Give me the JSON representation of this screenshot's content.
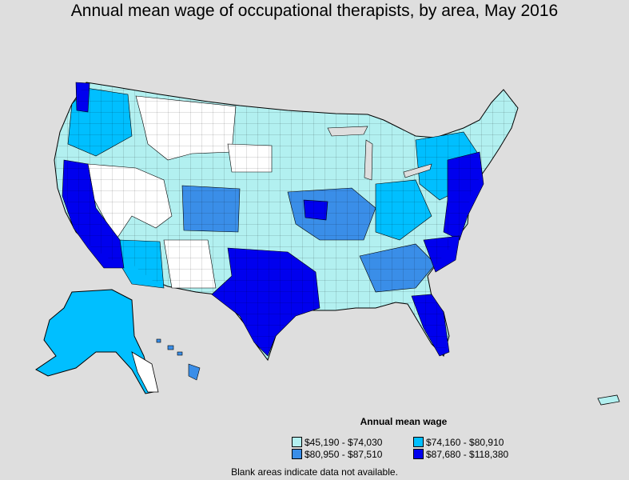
{
  "title": "Annual mean wage of occupational therapists, by area, May 2016",
  "legend": {
    "title": "Annual mean wage",
    "items": [
      {
        "label": "$45,190 - $74,030",
        "color": "#b2f0f0"
      },
      {
        "label": "$74,160 - $80,910",
        "color": "#00bfff"
      },
      {
        "label": "$80,950 - $87,510",
        "color": "#3a8ee8"
      },
      {
        "label": "$87,680 - $118,380",
        "color": "#0000ee"
      }
    ]
  },
  "footnote": "Blank areas indicate data not available.",
  "colors": {
    "background": "#dedede",
    "no_data": "#ffffff",
    "border": "#000000"
  }
}
